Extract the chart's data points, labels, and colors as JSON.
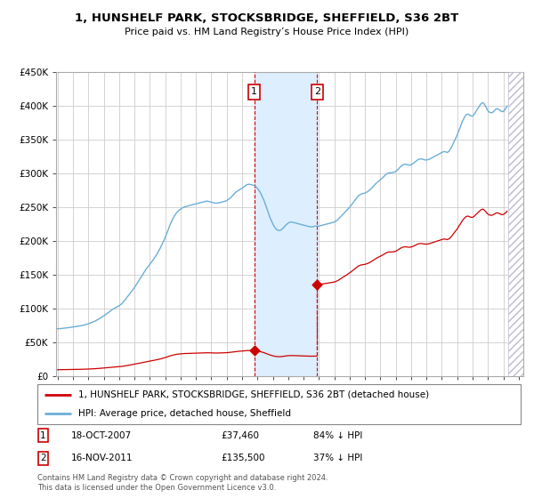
{
  "title": "1, HUNSHELF PARK, STOCKSBRIDGE, SHEFFIELD, S36 2BT",
  "subtitle": "Price paid vs. HM Land Registry’s House Price Index (HPI)",
  "ylim": [
    0,
    450000
  ],
  "xlim_start": 1994.9,
  "xlim_end": 2025.3,
  "sale1_date": 2007.79,
  "sale1_price": 37460,
  "sale1_label": "18-OCT-2007",
  "sale1_pct": "84% ↓ HPI",
  "sale2_date": 2011.88,
  "sale2_price": 135500,
  "sale2_label": "16-NOV-2011",
  "sale2_pct": "37% ↓ HPI",
  "property_color": "#cc0000",
  "hpi_color": "#6baed6",
  "shade_color": "#ddeeff",
  "legend_property": "1, HUNSHELF PARK, STOCKSBRIDGE, SHEFFIELD, S36 2BT (detached house)",
  "legend_hpi": "HPI: Average price, detached house, Sheffield",
  "footer": "Contains HM Land Registry data © Crown copyright and database right 2024.\nThis data is licensed under the Open Government Licence v3.0.",
  "annotation1_value": "£37,460",
  "annotation2_value": "£135,500",
  "hpi_data": [
    [
      1995.0,
      70000
    ],
    [
      1995.08,
      70200
    ],
    [
      1995.17,
      70100
    ],
    [
      1995.25,
      70400
    ],
    [
      1995.33,
      70600
    ],
    [
      1995.42,
      70800
    ],
    [
      1995.5,
      71000
    ],
    [
      1995.58,
      71200
    ],
    [
      1995.67,
      71500
    ],
    [
      1995.75,
      71800
    ],
    [
      1995.83,
      72000
    ],
    [
      1995.92,
      72300
    ],
    [
      1996.0,
      72600
    ],
    [
      1996.08,
      72900
    ],
    [
      1996.17,
      73100
    ],
    [
      1996.25,
      73400
    ],
    [
      1996.33,
      73700
    ],
    [
      1996.42,
      74000
    ],
    [
      1996.5,
      74400
    ],
    [
      1996.58,
      74800
    ],
    [
      1996.67,
      75200
    ],
    [
      1996.75,
      75700
    ],
    [
      1996.83,
      76200
    ],
    [
      1996.92,
      76700
    ],
    [
      1997.0,
      77300
    ],
    [
      1997.08,
      78000
    ],
    [
      1997.17,
      78700
    ],
    [
      1997.25,
      79500
    ],
    [
      1997.33,
      80300
    ],
    [
      1997.42,
      81200
    ],
    [
      1997.5,
      82100
    ],
    [
      1997.58,
      83100
    ],
    [
      1997.67,
      84200
    ],
    [
      1997.75,
      85300
    ],
    [
      1997.83,
      86500
    ],
    [
      1997.92,
      87700
    ],
    [
      1998.0,
      89000
    ],
    [
      1998.08,
      90300
    ],
    [
      1998.17,
      91700
    ],
    [
      1998.25,
      93100
    ],
    [
      1998.33,
      94600
    ],
    [
      1998.42,
      96000
    ],
    [
      1998.5,
      97400
    ],
    [
      1998.58,
      98700
    ],
    [
      1998.67,
      99900
    ],
    [
      1998.75,
      101000
    ],
    [
      1998.83,
      102000
    ],
    [
      1998.92,
      103000
    ],
    [
      1999.0,
      104000
    ],
    [
      1999.08,
      105500
    ],
    [
      1999.17,
      107000
    ],
    [
      1999.25,
      109000
    ],
    [
      1999.33,
      111000
    ],
    [
      1999.42,
      113500
    ],
    [
      1999.5,
      116000
    ],
    [
      1999.58,
      118500
    ],
    [
      1999.67,
      121000
    ],
    [
      1999.75,
      123500
    ],
    [
      1999.83,
      126000
    ],
    [
      1999.92,
      128500
    ],
    [
      2000.0,
      131000
    ],
    [
      2000.08,
      134000
    ],
    [
      2000.17,
      137000
    ],
    [
      2000.25,
      140000
    ],
    [
      2000.33,
      143000
    ],
    [
      2000.42,
      146000
    ],
    [
      2000.5,
      149000
    ],
    [
      2000.58,
      152000
    ],
    [
      2000.67,
      155000
    ],
    [
      2000.75,
      158000
    ],
    [
      2000.83,
      160500
    ],
    [
      2000.92,
      163000
    ],
    [
      2001.0,
      165500
    ],
    [
      2001.08,
      168000
    ],
    [
      2001.17,
      170500
    ],
    [
      2001.25,
      173000
    ],
    [
      2001.33,
      176000
    ],
    [
      2001.42,
      179000
    ],
    [
      2001.5,
      182000
    ],
    [
      2001.58,
      185500
    ],
    [
      2001.67,
      189000
    ],
    [
      2001.75,
      193000
    ],
    [
      2001.83,
      197000
    ],
    [
      2001.92,
      201000
    ],
    [
      2002.0,
      205000
    ],
    [
      2002.08,
      210000
    ],
    [
      2002.17,
      215000
    ],
    [
      2002.25,
      220000
    ],
    [
      2002.33,
      225000
    ],
    [
      2002.42,
      229000
    ],
    [
      2002.5,
      233000
    ],
    [
      2002.58,
      236500
    ],
    [
      2002.67,
      239500
    ],
    [
      2002.75,
      242000
    ],
    [
      2002.83,
      244000
    ],
    [
      2002.92,
      245500
    ],
    [
      2003.0,
      247000
    ],
    [
      2003.08,
      248500
    ],
    [
      2003.17,
      249500
    ],
    [
      2003.25,
      250500
    ],
    [
      2003.33,
      251000
    ],
    [
      2003.42,
      251500
    ],
    [
      2003.5,
      252000
    ],
    [
      2003.58,
      252500
    ],
    [
      2003.67,
      253000
    ],
    [
      2003.75,
      253500
    ],
    [
      2003.83,
      254000
    ],
    [
      2003.92,
      254500
    ],
    [
      2004.0,
      255000
    ],
    [
      2004.08,
      255500
    ],
    [
      2004.17,
      256000
    ],
    [
      2004.25,
      256500
    ],
    [
      2004.33,
      257000
    ],
    [
      2004.42,
      257500
    ],
    [
      2004.5,
      258000
    ],
    [
      2004.58,
      258500
    ],
    [
      2004.67,
      259000
    ],
    [
      2004.75,
      259000
    ],
    [
      2004.83,
      258500
    ],
    [
      2004.92,
      258000
    ],
    [
      2005.0,
      257500
    ],
    [
      2005.08,
      257000
    ],
    [
      2005.17,
      256500
    ],
    [
      2005.25,
      256000
    ],
    [
      2005.33,
      256000
    ],
    [
      2005.42,
      256200
    ],
    [
      2005.5,
      256500
    ],
    [
      2005.58,
      257000
    ],
    [
      2005.67,
      257500
    ],
    [
      2005.75,
      258000
    ],
    [
      2005.83,
      258500
    ],
    [
      2005.92,
      259000
    ],
    [
      2006.0,
      260000
    ],
    [
      2006.08,
      261000
    ],
    [
      2006.17,
      262500
    ],
    [
      2006.25,
      264000
    ],
    [
      2006.33,
      266000
    ],
    [
      2006.42,
      268000
    ],
    [
      2006.5,
      270000
    ],
    [
      2006.58,
      272000
    ],
    [
      2006.67,
      273500
    ],
    [
      2006.75,
      275000
    ],
    [
      2006.83,
      276000
    ],
    [
      2006.92,
      277000
    ],
    [
      2007.0,
      278000
    ],
    [
      2007.08,
      279500
    ],
    [
      2007.17,
      281000
    ],
    [
      2007.25,
      282500
    ],
    [
      2007.33,
      283500
    ],
    [
      2007.42,
      284000
    ],
    [
      2007.5,
      284000
    ],
    [
      2007.58,
      283500
    ],
    [
      2007.67,
      283000
    ],
    [
      2007.75,
      282500
    ],
    [
      2007.83,
      281500
    ],
    [
      2007.92,
      280000
    ],
    [
      2008.0,
      278000
    ],
    [
      2008.08,
      275500
    ],
    [
      2008.17,
      272500
    ],
    [
      2008.25,
      269000
    ],
    [
      2008.33,
      265000
    ],
    [
      2008.42,
      260500
    ],
    [
      2008.5,
      255500
    ],
    [
      2008.58,
      250000
    ],
    [
      2008.67,
      244500
    ],
    [
      2008.75,
      239000
    ],
    [
      2008.83,
      234000
    ],
    [
      2008.92,
      229500
    ],
    [
      2009.0,
      225500
    ],
    [
      2009.08,
      222000
    ],
    [
      2009.17,
      219000
    ],
    [
      2009.25,
      217000
    ],
    [
      2009.33,
      216000
    ],
    [
      2009.42,
      215500
    ],
    [
      2009.5,
      216000
    ],
    [
      2009.58,
      217000
    ],
    [
      2009.67,
      219000
    ],
    [
      2009.75,
      221000
    ],
    [
      2009.83,
      223000
    ],
    [
      2009.92,
      225000
    ],
    [
      2010.0,
      226500
    ],
    [
      2010.08,
      227500
    ],
    [
      2010.17,
      228000
    ],
    [
      2010.25,
      228000
    ],
    [
      2010.33,
      227500
    ],
    [
      2010.42,
      227000
    ],
    [
      2010.5,
      226500
    ],
    [
      2010.58,
      226000
    ],
    [
      2010.67,
      225500
    ],
    [
      2010.75,
      225000
    ],
    [
      2010.83,
      224500
    ],
    [
      2010.92,
      224000
    ],
    [
      2011.0,
      223500
    ],
    [
      2011.08,
      223000
    ],
    [
      2011.17,
      222500
    ],
    [
      2011.25,
      222000
    ],
    [
      2011.33,
      221500
    ],
    [
      2011.42,
      221000
    ],
    [
      2011.5,
      221000
    ],
    [
      2011.58,
      221000
    ],
    [
      2011.67,
      221500
    ],
    [
      2011.75,
      222000
    ],
    [
      2011.83,
      222000
    ],
    [
      2011.92,
      222000
    ],
    [
      2012.0,
      222000
    ],
    [
      2012.08,
      222500
    ],
    [
      2012.17,
      223000
    ],
    [
      2012.25,
      223500
    ],
    [
      2012.33,
      224000
    ],
    [
      2012.42,
      224500
    ],
    [
      2012.5,
      225000
    ],
    [
      2012.58,
      225500
    ],
    [
      2012.67,
      226000
    ],
    [
      2012.75,
      226500
    ],
    [
      2012.83,
      227000
    ],
    [
      2012.92,
      227500
    ],
    [
      2013.0,
      228000
    ],
    [
      2013.08,
      229000
    ],
    [
      2013.17,
      230500
    ],
    [
      2013.25,
      232000
    ],
    [
      2013.33,
      234000
    ],
    [
      2013.42,
      236000
    ],
    [
      2013.5,
      238000
    ],
    [
      2013.58,
      240000
    ],
    [
      2013.67,
      242000
    ],
    [
      2013.75,
      244000
    ],
    [
      2013.83,
      246000
    ],
    [
      2013.92,
      248000
    ],
    [
      2014.0,
      250000
    ],
    [
      2014.08,
      252500
    ],
    [
      2014.17,
      255000
    ],
    [
      2014.25,
      257500
    ],
    [
      2014.33,
      260000
    ],
    [
      2014.42,
      262500
    ],
    [
      2014.5,
      265000
    ],
    [
      2014.58,
      267000
    ],
    [
      2014.67,
      268500
    ],
    [
      2014.75,
      269500
    ],
    [
      2014.83,
      270000
    ],
    [
      2014.92,
      270500
    ],
    [
      2015.0,
      271000
    ],
    [
      2015.08,
      272000
    ],
    [
      2015.17,
      273000
    ],
    [
      2015.25,
      274500
    ],
    [
      2015.33,
      276000
    ],
    [
      2015.42,
      278000
    ],
    [
      2015.5,
      280000
    ],
    [
      2015.58,
      282000
    ],
    [
      2015.67,
      284000
    ],
    [
      2015.75,
      286000
    ],
    [
      2015.83,
      287500
    ],
    [
      2015.92,
      289000
    ],
    [
      2016.0,
      290500
    ],
    [
      2016.08,
      292000
    ],
    [
      2016.17,
      294000
    ],
    [
      2016.25,
      296000
    ],
    [
      2016.33,
      298000
    ],
    [
      2016.42,
      299500
    ],
    [
      2016.5,
      300500
    ],
    [
      2016.58,
      301000
    ],
    [
      2016.67,
      301000
    ],
    [
      2016.75,
      301000
    ],
    [
      2016.83,
      301500
    ],
    [
      2016.92,
      302000
    ],
    [
      2017.0,
      303000
    ],
    [
      2017.08,
      304500
    ],
    [
      2017.17,
      306500
    ],
    [
      2017.25,
      308500
    ],
    [
      2017.33,
      310500
    ],
    [
      2017.42,
      312000
    ],
    [
      2017.5,
      313000
    ],
    [
      2017.58,
      313500
    ],
    [
      2017.67,
      313500
    ],
    [
      2017.75,
      313000
    ],
    [
      2017.83,
      312500
    ],
    [
      2017.92,
      312500
    ],
    [
      2018.0,
      313000
    ],
    [
      2018.08,
      314000
    ],
    [
      2018.17,
      315500
    ],
    [
      2018.25,
      317000
    ],
    [
      2018.33,
      318500
    ],
    [
      2018.42,
      320000
    ],
    [
      2018.5,
      321000
    ],
    [
      2018.58,
      321500
    ],
    [
      2018.67,
      321500
    ],
    [
      2018.75,
      321000
    ],
    [
      2018.83,
      320500
    ],
    [
      2018.92,
      320000
    ],
    [
      2019.0,
      320000
    ],
    [
      2019.08,
      320500
    ],
    [
      2019.17,
      321000
    ],
    [
      2019.25,
      322000
    ],
    [
      2019.33,
      323000
    ],
    [
      2019.42,
      324000
    ],
    [
      2019.5,
      325000
    ],
    [
      2019.58,
      326000
    ],
    [
      2019.67,
      327000
    ],
    [
      2019.75,
      328000
    ],
    [
      2019.83,
      329000
    ],
    [
      2019.92,
      330000
    ],
    [
      2020.0,
      331000
    ],
    [
      2020.08,
      332000
    ],
    [
      2020.17,
      332500
    ],
    [
      2020.25,
      332000
    ],
    [
      2020.33,
      331000
    ],
    [
      2020.42,
      332000
    ],
    [
      2020.5,
      334000
    ],
    [
      2020.58,
      337000
    ],
    [
      2020.67,
      341000
    ],
    [
      2020.75,
      345000
    ],
    [
      2020.83,
      349000
    ],
    [
      2020.92,
      353000
    ],
    [
      2021.0,
      357000
    ],
    [
      2021.08,
      362000
    ],
    [
      2021.17,
      367000
    ],
    [
      2021.25,
      372000
    ],
    [
      2021.33,
      377000
    ],
    [
      2021.42,
      381000
    ],
    [
      2021.5,
      384500
    ],
    [
      2021.58,
      387000
    ],
    [
      2021.67,
      388000
    ],
    [
      2021.75,
      387500
    ],
    [
      2021.83,
      386000
    ],
    [
      2021.92,
      385000
    ],
    [
      2022.0,
      385000
    ],
    [
      2022.08,
      387000
    ],
    [
      2022.17,
      390000
    ],
    [
      2022.25,
      393000
    ],
    [
      2022.33,
      396000
    ],
    [
      2022.42,
      399000
    ],
    [
      2022.5,
      402000
    ],
    [
      2022.58,
      404000
    ],
    [
      2022.67,
      405000
    ],
    [
      2022.75,
      403000
    ],
    [
      2022.83,
      400000
    ],
    [
      2022.92,
      396000
    ],
    [
      2023.0,
      393000
    ],
    [
      2023.08,
      391000
    ],
    [
      2023.17,
      390000
    ],
    [
      2023.25,
      390000
    ],
    [
      2023.33,
      391000
    ],
    [
      2023.42,
      393000
    ],
    [
      2023.5,
      395000
    ],
    [
      2023.58,
      396000
    ],
    [
      2023.67,
      395500
    ],
    [
      2023.75,
      394000
    ],
    [
      2023.83,
      392500
    ],
    [
      2023.92,
      391500
    ],
    [
      2024.0,
      392000
    ],
    [
      2024.08,
      394000
    ],
    [
      2024.17,
      397000
    ],
    [
      2024.25,
      400000
    ]
  ],
  "grid_color": "#cccccc",
  "background_color": "#ffffff",
  "hatch_start": 2024.3
}
